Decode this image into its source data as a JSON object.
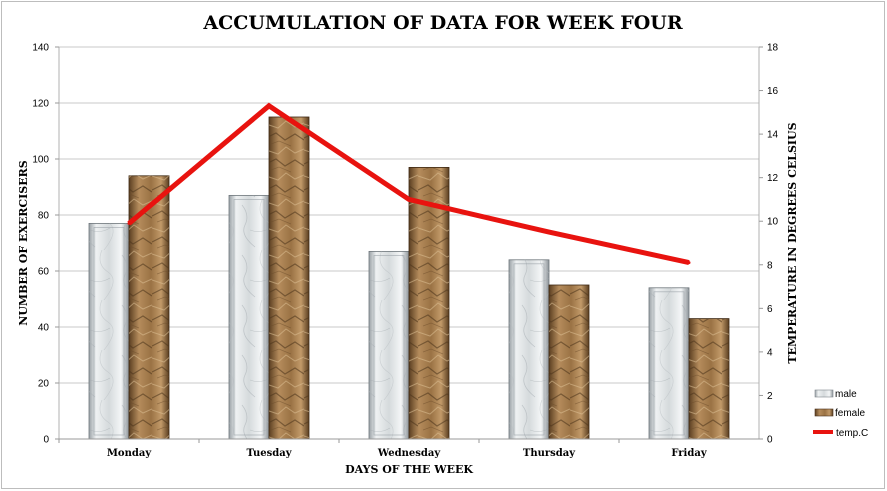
{
  "chart_data": {
    "type": "bar",
    "title": "ACCUMULATION OF DATA FOR WEEK FOUR",
    "xlabel": "DAYS OF THE WEEK",
    "ylabel": "NUMBER OF EXERCISERS",
    "y2label": "TEMPERATURE IN DEGREES CELSIUS",
    "categories": [
      "Monday",
      "Tuesday",
      "Wednesday",
      "Thursday",
      "Friday"
    ],
    "ylim": [
      0,
      140
    ],
    "y_ticks": [
      "0",
      "20",
      "40",
      "60",
      "80",
      "100",
      "120",
      "140"
    ],
    "y2lim": [
      0,
      18
    ],
    "y2_ticks": [
      "0",
      "2",
      "4",
      "6",
      "8",
      "10",
      "12",
      "14",
      "16",
      "18"
    ],
    "grid": "horizontal",
    "legend_position": "right",
    "series": [
      {
        "name": "male",
        "type": "bar",
        "axis": "left",
        "values": [
          77,
          87,
          67,
          64,
          54
        ],
        "color": "#d7dadc"
      },
      {
        "name": "female",
        "type": "bar",
        "axis": "left",
        "values": [
          94,
          115,
          97,
          55,
          43
        ],
        "color": "#a47c4f"
      },
      {
        "name": "temp.C",
        "type": "line",
        "axis": "right",
        "values": [
          9.9,
          15.3,
          11.0,
          9.5,
          8.1
        ],
        "color": "#e8130f"
      }
    ]
  }
}
